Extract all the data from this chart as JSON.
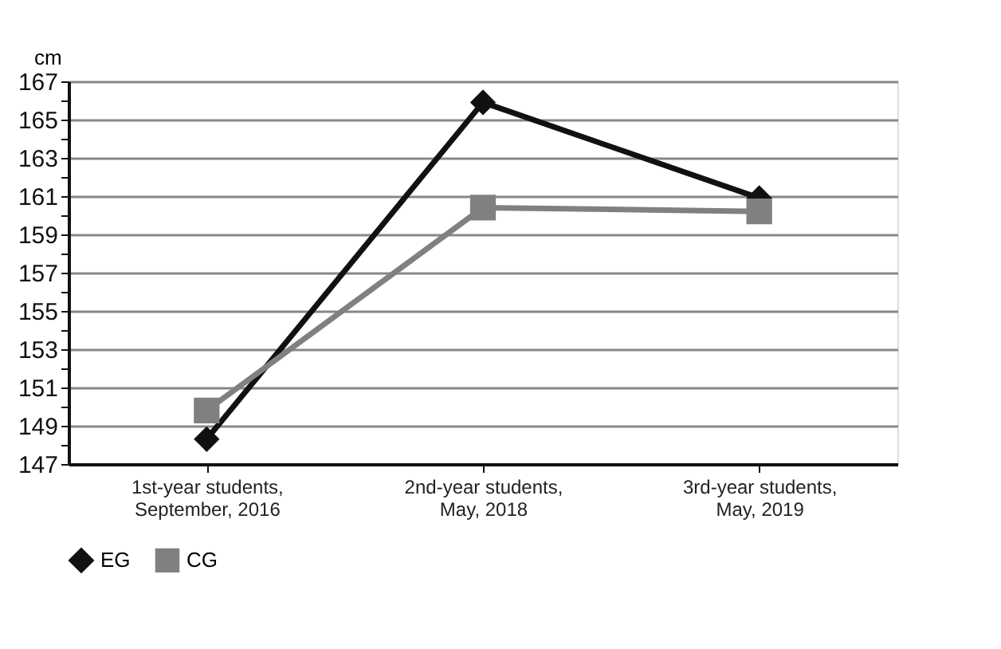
{
  "chart_data": {
    "type": "line",
    "ylabel": "cm",
    "categories": [
      "1st-year students, September, 2016",
      "2nd-year students, May, 2018",
      "3rd-year students, May, 2019"
    ],
    "series": [
      {
        "name": "EG",
        "color": "#111111",
        "marker": "diamond",
        "values": [
          148.3,
          165.9,
          160.9
        ]
      },
      {
        "name": "CG",
        "color": "#808080",
        "marker": "square",
        "values": [
          149.8,
          160.4,
          160.2
        ]
      }
    ],
    "ylim": [
      147,
      167
    ],
    "yticks": [
      147,
      {
        "value": 148,
        "label": null
      },
      149,
      {
        "value": 150,
        "label": null
      },
      151,
      {
        "value": 152,
        "label": null
      },
      153,
      {
        "value": 154,
        "label": null
      },
      155,
      {
        "value": 156,
        "label": null
      },
      157,
      {
        "value": 158,
        "label": null
      },
      159,
      {
        "value": 160,
        "label": null
      },
      161,
      {
        "value": 162,
        "label": null
      },
      163,
      {
        "value": 164,
        "label": null
      },
      165,
      {
        "value": 166,
        "label": null
      },
      167
    ],
    "grid": "y",
    "legend": "bottom",
    "line_style": "solid"
  }
}
